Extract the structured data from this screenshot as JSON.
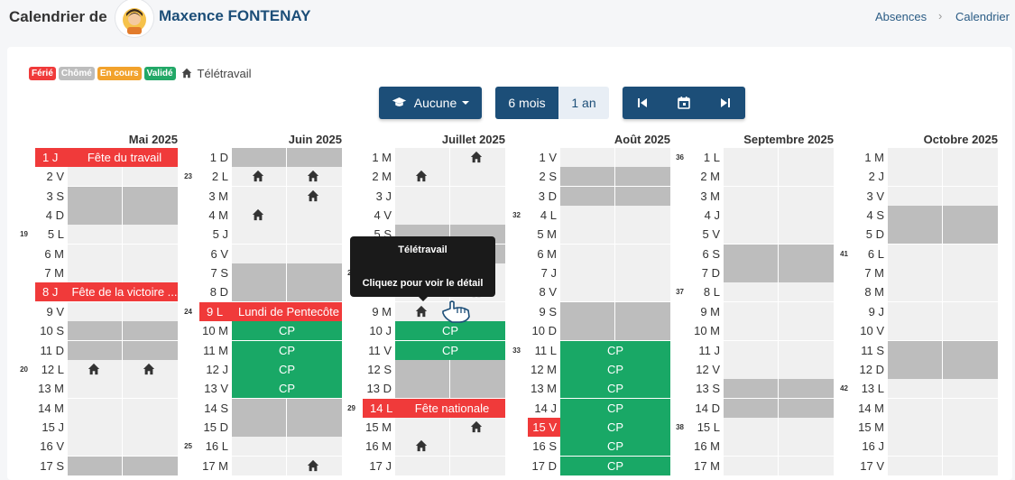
{
  "header": {
    "title": "Calendrier de",
    "user_name": "Maxence FONTENAY",
    "breadcrumb": [
      "Absences",
      "Calendrier"
    ]
  },
  "legend": {
    "badges": [
      {
        "label": "Férié",
        "color": "#f03a3a"
      },
      {
        "label": "Chômé",
        "color": "#bdbdbd"
      },
      {
        "label": "En cours",
        "color": "#f2a22c"
      },
      {
        "label": "Validé",
        "color": "#22a867"
      }
    ],
    "telework_icon": "home-icon",
    "telework_label": "Télétravail"
  },
  "toolbar": {
    "filter_label": "Aucune",
    "filter_icon": "graduation-cap-icon",
    "range_6": "6 mois",
    "range_12": "1 an",
    "first_icon": "skip-start-icon",
    "today_icon": "calendar-icon",
    "last_icon": "skip-end-icon"
  },
  "colors": {
    "ferie": "#f03a3a",
    "weekend": "#bdbdbd",
    "validated": "#19a866",
    "primary": "#1c4e78"
  },
  "tooltip": {
    "title": "Télétravail",
    "hint": "Cliquez pour voir le détail"
  },
  "months": [
    {
      "name": "Mai 2025",
      "days": [
        {
          "label": "1 J",
          "ferie": true,
          "text": "Fête du travail"
        },
        {
          "label": "2 V"
        },
        {
          "label": "3 S",
          "wknd": true
        },
        {
          "label": "4 D",
          "wknd": true
        },
        {
          "label": "5 L",
          "week": "19"
        },
        {
          "label": "6 M"
        },
        {
          "label": "7 M"
        },
        {
          "label": "8 J",
          "ferie": true,
          "text": "Fête de la victoire ..."
        },
        {
          "label": "9 V"
        },
        {
          "label": "10 S",
          "wknd": true
        },
        {
          "label": "11 D",
          "wknd": true
        },
        {
          "label": "12 L",
          "week": "20",
          "am": "home",
          "pm": "home"
        },
        {
          "label": "13 M"
        },
        {
          "label": "14 M"
        },
        {
          "label": "15 J"
        },
        {
          "label": "16 V"
        },
        {
          "label": "17 S",
          "wknd": true
        }
      ]
    },
    {
      "name": "Juin 2025",
      "days": [
        {
          "label": "1 D",
          "wknd": true
        },
        {
          "label": "2 L",
          "week": "23",
          "am": "home",
          "pm": "home"
        },
        {
          "label": "3 M",
          "pm": "home"
        },
        {
          "label": "4 M",
          "am": "home"
        },
        {
          "label": "5 J"
        },
        {
          "label": "6 V"
        },
        {
          "label": "7 S",
          "wknd": true
        },
        {
          "label": "8 D",
          "wknd": true
        },
        {
          "label": "9 L",
          "week": "24",
          "ferie": true,
          "text": "Lundi de Pentecôte"
        },
        {
          "label": "10 M",
          "cp": true,
          "text": "CP"
        },
        {
          "label": "11 M",
          "cp": true,
          "text": "CP"
        },
        {
          "label": "12 J",
          "cp": true,
          "text": "CP"
        },
        {
          "label": "13 V",
          "cp": true,
          "text": "CP"
        },
        {
          "label": "14 S",
          "wknd": true
        },
        {
          "label": "15 D",
          "wknd": true
        },
        {
          "label": "16 L",
          "week": "25"
        },
        {
          "label": "17 M",
          "pm": "home"
        }
      ]
    },
    {
      "name": "Juillet 2025",
      "days": [
        {
          "label": "1 M",
          "pm": "home"
        },
        {
          "label": "2 M",
          "am": "home"
        },
        {
          "label": "3 J"
        },
        {
          "label": "4 V"
        },
        {
          "label": "5 S",
          "wknd": true
        },
        {
          "label": "6 D",
          "wknd": true
        },
        {
          "label": "7 L",
          "week": "28"
        },
        {
          "label": "8 M",
          "pm": "home"
        },
        {
          "label": "9 M",
          "am": "home"
        },
        {
          "label": "10 J",
          "cp": true,
          "text": "CP"
        },
        {
          "label": "11 V",
          "cp": true,
          "text": "CP"
        },
        {
          "label": "12 S",
          "wknd": true
        },
        {
          "label": "13 D",
          "wknd": true
        },
        {
          "label": "14 L",
          "week": "29",
          "ferie": true,
          "text": "Fête nationale"
        },
        {
          "label": "15 M",
          "pm": "home"
        },
        {
          "label": "16 M",
          "am": "home"
        },
        {
          "label": "17 J"
        }
      ]
    },
    {
      "name": "Août 2025",
      "days": [
        {
          "label": "1 V"
        },
        {
          "label": "2 S",
          "wknd": true
        },
        {
          "label": "3 D",
          "wknd": true
        },
        {
          "label": "4 L",
          "week": "32"
        },
        {
          "label": "5 M"
        },
        {
          "label": "6 M"
        },
        {
          "label": "7 J"
        },
        {
          "label": "8 V"
        },
        {
          "label": "9 S",
          "wknd": true
        },
        {
          "label": "10 D",
          "wknd": true
        },
        {
          "label": "11 L",
          "week": "33",
          "cp": true,
          "text": "CP"
        },
        {
          "label": "12 M",
          "cp": true,
          "text": "CP"
        },
        {
          "label": "13 M",
          "cp": true,
          "text": "CP"
        },
        {
          "label": "14 J",
          "cp": true,
          "text": "CP"
        },
        {
          "label": "15 V",
          "ferielabel": true,
          "cp": true,
          "text": "CP"
        },
        {
          "label": "16 S",
          "cp": true,
          "text": "CP"
        },
        {
          "label": "17 D",
          "cp": true,
          "text": "CP"
        }
      ]
    },
    {
      "name": "Septembre 2025",
      "days": [
        {
          "label": "1 L",
          "week": "36"
        },
        {
          "label": "2 M"
        },
        {
          "label": "3 M"
        },
        {
          "label": "4 J"
        },
        {
          "label": "5 V"
        },
        {
          "label": "6 S",
          "wknd": true
        },
        {
          "label": "7 D",
          "wknd": true
        },
        {
          "label": "8 L",
          "week": "37"
        },
        {
          "label": "9 M"
        },
        {
          "label": "10 M"
        },
        {
          "label": "11 J"
        },
        {
          "label": "12 V"
        },
        {
          "label": "13 S",
          "wknd": true
        },
        {
          "label": "14 D",
          "wknd": true
        },
        {
          "label": "15 L",
          "week": "38"
        },
        {
          "label": "16 M"
        },
        {
          "label": "17 M"
        }
      ]
    },
    {
      "name": "Octobre 2025",
      "days": [
        {
          "label": "1 M"
        },
        {
          "label": "2 J"
        },
        {
          "label": "3 V"
        },
        {
          "label": "4 S",
          "wknd": true
        },
        {
          "label": "5 D",
          "wknd": true
        },
        {
          "label": "6 L",
          "week": "41"
        },
        {
          "label": "7 M"
        },
        {
          "label": "8 M"
        },
        {
          "label": "9 J"
        },
        {
          "label": "10 V"
        },
        {
          "label": "11 S",
          "wknd": true
        },
        {
          "label": "12 D",
          "wknd": true
        },
        {
          "label": "13 L",
          "week": "42"
        },
        {
          "label": "14 M"
        },
        {
          "label": "15 M"
        },
        {
          "label": "16 J"
        },
        {
          "label": "17 V"
        }
      ]
    }
  ]
}
